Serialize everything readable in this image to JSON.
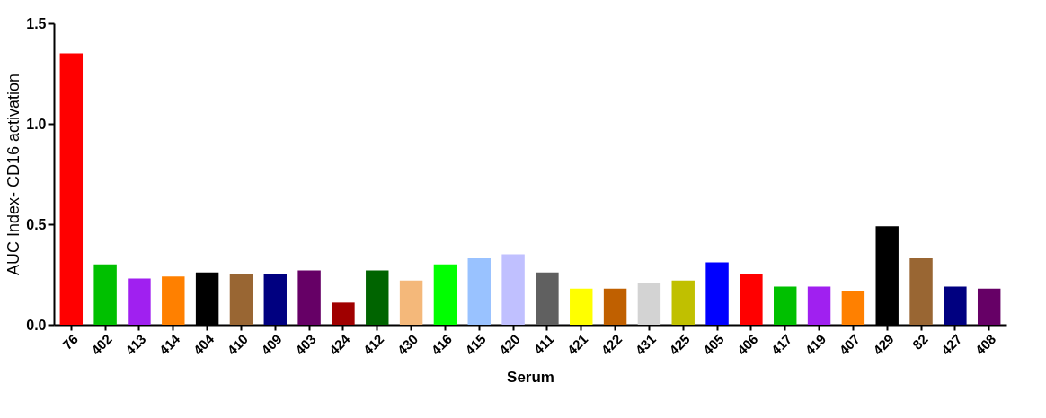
{
  "chart_data": {
    "type": "bar",
    "xlabel": "Serum",
    "ylabel": "AUC Index- CD16 activation",
    "categories": [
      "76",
      "402",
      "413",
      "414",
      "404",
      "410",
      "409",
      "403",
      "424",
      "412",
      "430",
      "416",
      "415",
      "420",
      "411",
      "421",
      "422",
      "431",
      "425",
      "405",
      "406",
      "417",
      "419",
      "407",
      "429",
      "82",
      "427",
      "408"
    ],
    "values": [
      1.35,
      0.3,
      0.23,
      0.24,
      0.26,
      0.25,
      0.25,
      0.27,
      0.11,
      0.27,
      0.22,
      0.3,
      0.33,
      0.35,
      0.26,
      0.18,
      0.18,
      0.21,
      0.22,
      0.31,
      0.25,
      0.19,
      0.19,
      0.17,
      0.49,
      0.33,
      0.19,
      0.18
    ],
    "colors": [
      "#ff0000",
      "#00c000",
      "#a020f0",
      "#ff8000",
      "#000000",
      "#996633",
      "#000080",
      "#660066",
      "#a00000",
      "#006400",
      "#f4b87a",
      "#00ff00",
      "#99c2ff",
      "#c0c0ff",
      "#606060",
      "#ffff00",
      "#c06000",
      "#d3d3d3",
      "#c0c000",
      "#0000ff",
      "#ff0000",
      "#00c000",
      "#a020f0",
      "#ff8000",
      "#000000",
      "#996633",
      "#000080",
      "#660066"
    ],
    "ylim": [
      0,
      1.5
    ],
    "yticks": [
      {
        "value": 0,
        "label": "0.0"
      },
      {
        "value": 0.5,
        "label": "0.5"
      },
      {
        "value": 1,
        "label": "1.0"
      },
      {
        "value": 1.5,
        "label": "1.5"
      }
    ],
    "grid": false
  }
}
